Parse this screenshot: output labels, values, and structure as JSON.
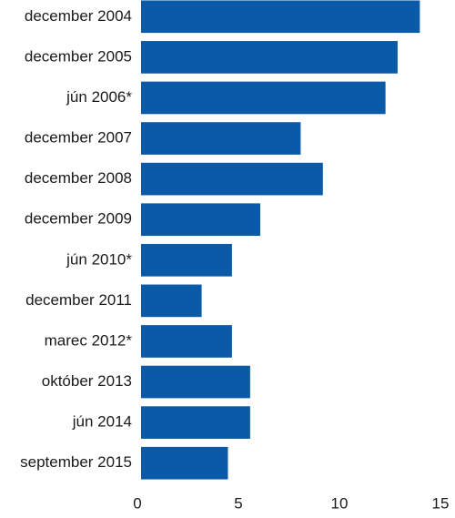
{
  "chart_data": {
    "type": "bar",
    "orientation": "horizontal",
    "categories": [
      "december 2004",
      "december 2005",
      "jún 2006*",
      "december 2007",
      "december 2008",
      "december 2009",
      "jún 2010*",
      "december 2011",
      "marec 2012*",
      "október 2013",
      "jún 2014",
      "september 2015"
    ],
    "values": [
      13.8,
      12.7,
      12.1,
      7.9,
      9.0,
      5.9,
      4.5,
      3.0,
      4.5,
      5.4,
      5.4,
      4.3
    ],
    "color": "#0b5aa8",
    "xlim": [
      0,
      15
    ],
    "xticks": [
      0,
      5,
      10,
      15
    ],
    "grid": false
  }
}
